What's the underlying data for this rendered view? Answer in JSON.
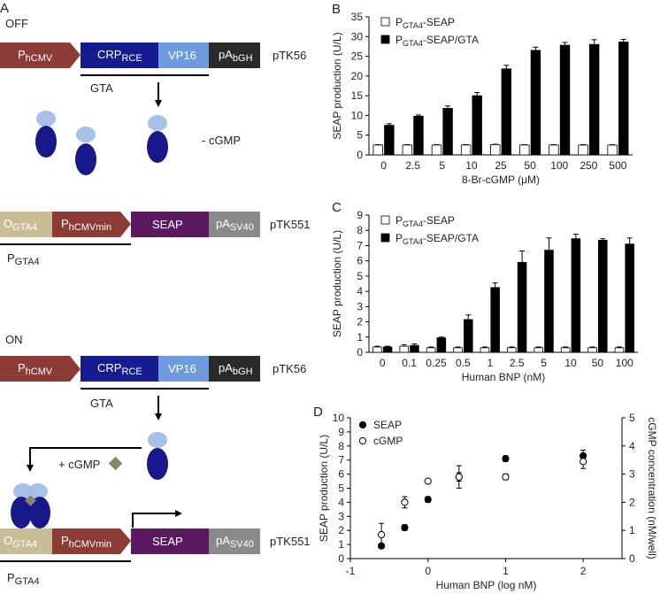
{
  "colors": {
    "promoter": "#8c3b35",
    "crp": "#141c8f",
    "vp16": "#6e9be0",
    "pa_dark": "#2a2a2a",
    "operator": "#c9bd96",
    "seap": "#5b1a60",
    "pa_grey": "#8a8a8a",
    "subunit_light": "#a7c0ea",
    "subunit_dark": "#17188a",
    "cgmp_diamond": "#8c8668"
  },
  "panel_a": {
    "label": "A",
    "off_label": "OFF",
    "on_label": "ON",
    "plasmid1": {
      "p_hcmv": "P",
      "p_hcmv_sub": "hCMV",
      "crp": "CRP",
      "crp_sub": "RCE",
      "vp16": "VP16",
      "pa": "pA",
      "pa_sub": "bGH",
      "name": "pTK56"
    },
    "gta_label": "GTA",
    "minus_cgmp": "- cGMP",
    "plus_cgmp": "+ cGMP",
    "plasmid2": {
      "o_gta4": "O",
      "o_gta4_sub": "GTA4",
      "p_min": "P",
      "p_min_sub": "hCMVmin",
      "seap": "SEAP",
      "pa": "pA",
      "pa_sub": "SV40",
      "name": "pTK551"
    },
    "pgta4": "P",
    "pgta4_sub": "GTA4"
  },
  "chart_data": [
    {
      "panel": "B",
      "type": "bar",
      "xlabel": "8-Br-cGMP (μM)",
      "ylabel": "SEAP production (U/L)",
      "ylim": [
        0,
        35
      ],
      "yticks": [
        "0",
        "5",
        "10",
        "15",
        "20",
        "25",
        "30",
        "35"
      ],
      "categories": [
        "0",
        "2.5",
        "5",
        "10",
        "25",
        "50",
        "100",
        "250",
        "500"
      ],
      "legend": [
        {
          "pre": "P",
          "sub": "GTA4",
          "post": "-SEAP"
        },
        {
          "pre": "P",
          "sub": "GTA4",
          "post": "-SEAP/GTA"
        }
      ],
      "series": [
        {
          "fill": "#ffffff",
          "values": [
            2.5,
            2.5,
            2.5,
            2.5,
            2.6,
            2.5,
            2.5,
            2.5,
            2.5
          ],
          "err": [
            0.1,
            0.1,
            0.1,
            0.1,
            0.1,
            0.1,
            0.1,
            0.1,
            0.1
          ]
        },
        {
          "fill": "#000000",
          "values": [
            7.5,
            9.8,
            11.8,
            15.0,
            21.8,
            26.5,
            27.8,
            28.0,
            28.6
          ],
          "err": [
            0.4,
            0.3,
            0.6,
            0.8,
            0.9,
            0.8,
            0.7,
            1.2,
            0.7
          ]
        }
      ]
    },
    {
      "panel": "C",
      "type": "bar",
      "xlabel": "Human BNP (nM)",
      "ylabel": "SEAP production (U/L)",
      "ylim": [
        0,
        9
      ],
      "yticks": [
        "0",
        "1",
        "2",
        "3",
        "4",
        "5",
        "6",
        "7",
        "8",
        "9"
      ],
      "categories": [
        "0",
        "0.1",
        "0.25",
        "0.5",
        "1",
        "2.5",
        "5",
        "10",
        "50",
        "100"
      ],
      "legend": [
        {
          "pre": "P",
          "sub": "GTA4",
          "post": "-SEAP"
        },
        {
          "pre": "P",
          "sub": "GTA4",
          "post": "-SEAP/GTA"
        }
      ],
      "series": [
        {
          "fill": "#ffffff",
          "values": [
            0.35,
            0.4,
            0.3,
            0.3,
            0.3,
            0.3,
            0.3,
            0.3,
            0.3,
            0.3
          ],
          "err": [
            0.05,
            0.1,
            0.05,
            0.05,
            0.05,
            0.05,
            0.05,
            0.05,
            0.05,
            0.05
          ]
        },
        {
          "fill": "#000000",
          "values": [
            0.35,
            0.45,
            0.95,
            2.15,
            4.25,
            5.9,
            6.7,
            7.45,
            7.35,
            7.1
          ],
          "err": [
            0.05,
            0.1,
            0.05,
            0.3,
            0.3,
            0.75,
            0.8,
            0.3,
            0.1,
            0.4
          ]
        }
      ]
    },
    {
      "panel": "D",
      "type": "scatter",
      "xlabel": "Human BNP (log nM)",
      "ylabel": "SEAP production (U/L)",
      "ylabel_right": "cGMP concentration (nM/well)",
      "xlim": [
        -1,
        2.5
      ],
      "xticks": [
        "-1",
        "0",
        "1",
        "2"
      ],
      "ylim": [
        0,
        10
      ],
      "yticks": [
        "0",
        "1",
        "2",
        "3",
        "4",
        "5",
        "6",
        "7",
        "8",
        "9",
        "10"
      ],
      "ylim_right": [
        0,
        5
      ],
      "yticks_right": [
        "0",
        "1",
        "2",
        "3",
        "4",
        "5"
      ],
      "series": [
        {
          "name": "SEAP",
          "marker": "filled",
          "axis": "left",
          "x": [
            -0.6,
            -0.3,
            0.0,
            0.4,
            1.0,
            2.0
          ],
          "y": [
            0.9,
            2.2,
            4.2,
            5.8,
            7.1,
            7.3
          ],
          "err": [
            0.1,
            0.2,
            0.2,
            0.3,
            0.2,
            0.4
          ]
        },
        {
          "name": "cGMP",
          "marker": "open",
          "axis": "right",
          "x": [
            -0.6,
            -0.3,
            0.0,
            0.4,
            1.0,
            2.0
          ],
          "y": [
            0.85,
            2.0,
            2.75,
            2.9,
            2.9,
            3.45
          ],
          "err": [
            0.4,
            0.2,
            0.05,
            0.4,
            0.1,
            0.25
          ]
        }
      ]
    }
  ]
}
